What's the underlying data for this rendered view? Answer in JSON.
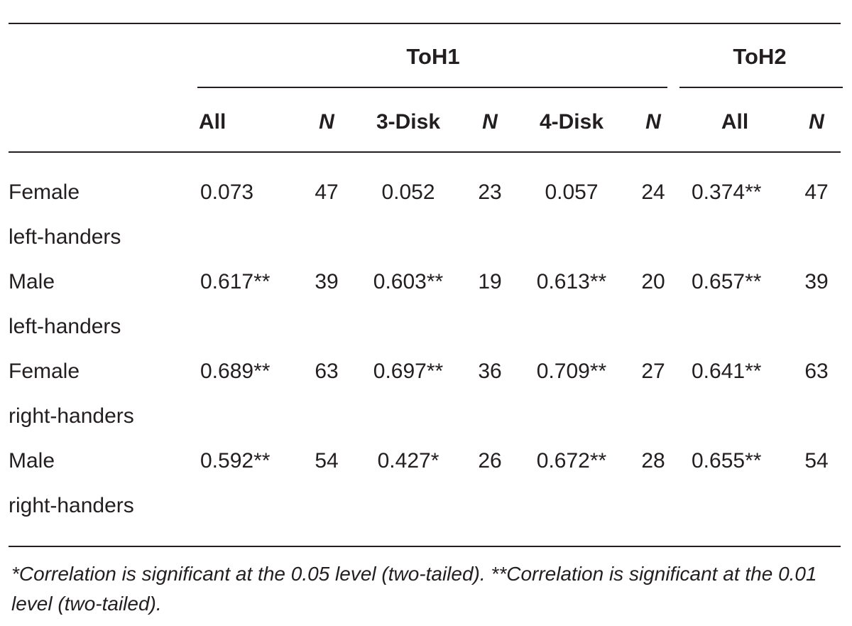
{
  "table": {
    "groups": [
      "ToH1",
      "ToH2"
    ],
    "columns": [
      "All",
      "N",
      "3-Disk",
      "N",
      "4-Disk",
      "N",
      "All",
      "N"
    ],
    "rows": [
      {
        "label1": "Female",
        "label2": "left-handers",
        "cells": [
          "0.073",
          "47",
          "0.052",
          "23",
          "0.057",
          "24",
          "0.374**",
          "47"
        ]
      },
      {
        "label1": "Male",
        "label2": "left-handers",
        "cells": [
          "0.617**",
          "39",
          "0.603**",
          "19",
          "0.613**",
          "20",
          "0.657**",
          "39"
        ]
      },
      {
        "label1": "Female",
        "label2": "right-handers",
        "cells": [
          "0.689**",
          "63",
          "0.697**",
          "36",
          "0.709**",
          "27",
          "0.641**",
          "63"
        ]
      },
      {
        "label1": "Male",
        "label2": "right-handers",
        "cells": [
          "0.592**",
          "54",
          "0.427*",
          "26",
          "0.672**",
          "28",
          "0.655**",
          "54"
        ]
      }
    ],
    "footnote": "*Correlation is significant at the 0.05 level (two-tailed). **Correlation is significant at the 0.01 level (two-tailed)."
  }
}
